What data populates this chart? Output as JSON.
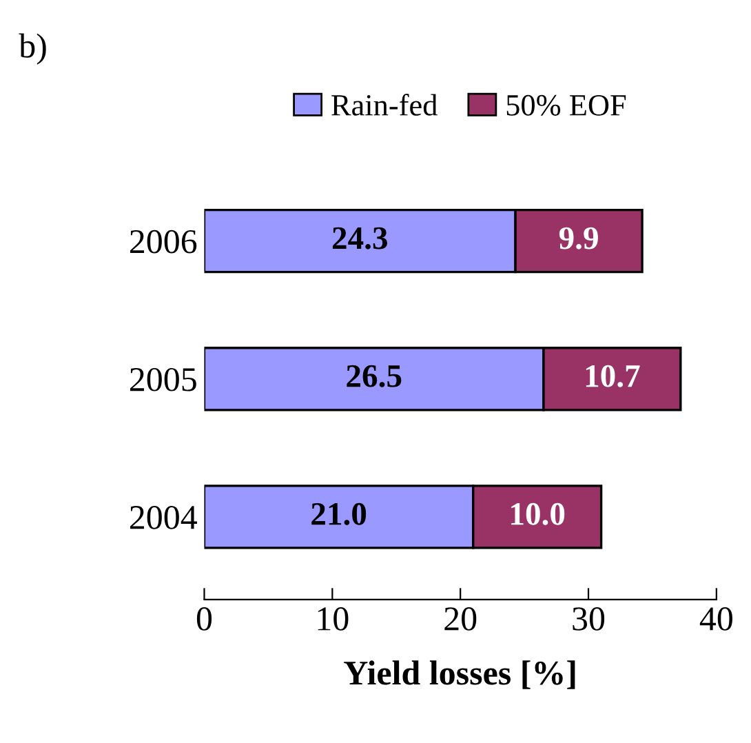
{
  "chart_data": {
    "type": "bar",
    "orientation": "horizontal",
    "stacked": true,
    "categories": [
      "2006",
      "2005",
      "2004"
    ],
    "series": [
      {
        "name": "Rain-fed",
        "color": "#9999ff",
        "values": [
          24.3,
          26.5,
          21.0
        ],
        "value_labels": [
          "24.3",
          "26.5",
          "21.0"
        ]
      },
      {
        "name": "50% EOF",
        "color": "#993366",
        "values": [
          9.9,
          10.7,
          10.0
        ],
        "value_labels": [
          "9.9",
          "10.7",
          "10.0"
        ]
      }
    ],
    "xlabel": "Yield losses [%]",
    "xlim": [
      0,
      40
    ],
    "xticks": [
      0,
      10,
      20,
      30,
      40
    ],
    "grid": false,
    "legend": "top",
    "annotations": [
      "b)"
    ]
  }
}
